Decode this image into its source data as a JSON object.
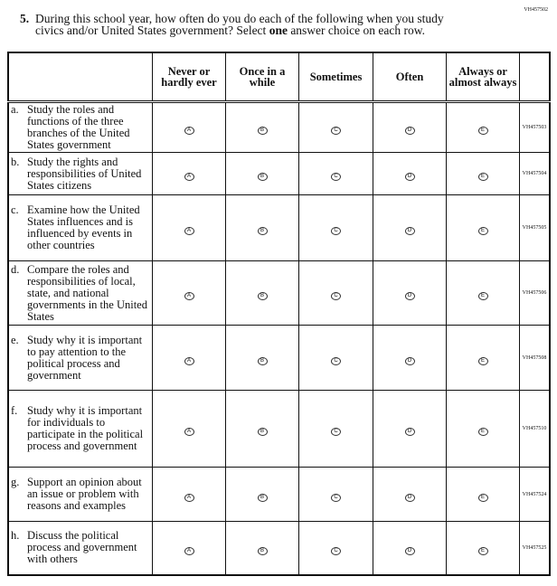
{
  "page_code": "VH457502",
  "question": {
    "number": "5.",
    "line1": "During this school year, how often do you do each of the following when you study",
    "line2_pre": "civics and/or United States government? Select ",
    "line2_bold": "one",
    "line2_post": " answer choice on each row."
  },
  "columns": [
    "Never or hardly ever",
    "Once in a while",
    "Sometimes",
    "Often",
    "Always or almost always"
  ],
  "option_letters": [
    "A",
    "B",
    "C",
    "D",
    "E"
  ],
  "rows": [
    {
      "letter": "a.",
      "text": "Study the roles and functions of the three branches of the United States government",
      "code": "VH457503",
      "h": 53
    },
    {
      "letter": "b.",
      "text": "Study the rights and responsibilities of United States citizens",
      "code": "VH457504",
      "h": 47
    },
    {
      "letter": "c.",
      "text": "Examine how the United States influences and is influenced by events in other countries",
      "code": "VH457505",
      "h": 73
    },
    {
      "letter": "d.",
      "text": "Compare the roles and responsibilities of local, state, and national governments in the United States",
      "code": "VH457506",
      "h": 71
    },
    {
      "letter": "e.",
      "text": "Study why it is important to pay attention to the political process and government",
      "code": "VH457508",
      "h": 72
    },
    {
      "letter": "f.",
      "text": "Study why it is important for individuals to participate in the political process and government",
      "code": "VH457510",
      "h": 85
    },
    {
      "letter": "g.",
      "text": "Support an opinion about an issue or problem with reasons and examples",
      "code": "VH457524",
      "h": 60
    },
    {
      "letter": "h.",
      "text": "Discuss the political process and government with others",
      "code": "VH457525",
      "h": 59
    }
  ]
}
